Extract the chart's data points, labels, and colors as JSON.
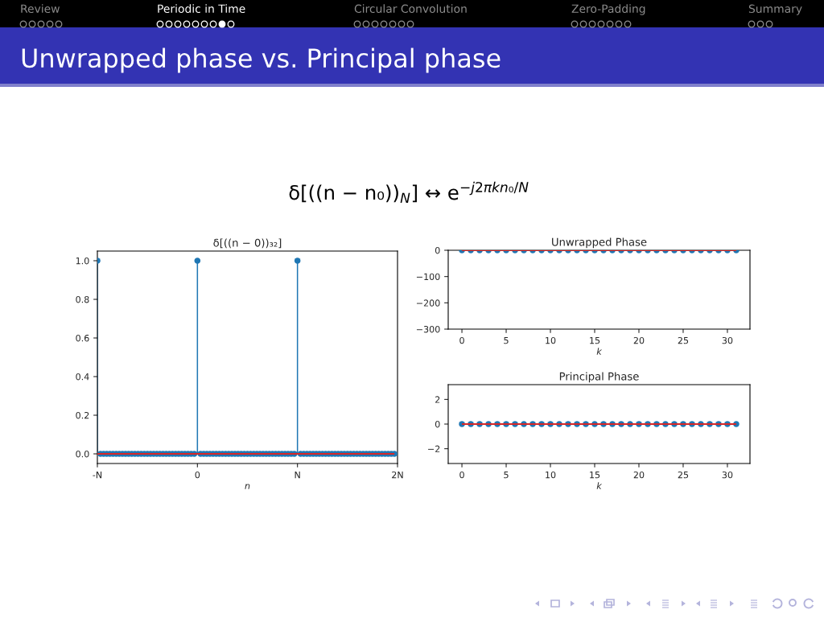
{
  "chart_data": [
    {
      "type": "other",
      "title": "Unwrapped phase vs. Principal phase",
      "annotations": [
        "Review",
        "Periodic in Time",
        "Circular Convolution",
        "Zero-Padding",
        "Summary",
        "δ[((n − n₀))$_{N}$] ↔ e$^{−j2πkn₀/N}$"
      ]
    },
    {
      "type": "lollipop",
      "title": "δ[((n − 0))₃₂]",
      "xlabel": "n",
      "categories": [
        "-N",
        null,
        null,
        null,
        null,
        null,
        null,
        null,
        null,
        null,
        null,
        null,
        null,
        null,
        null,
        null,
        null,
        null,
        null,
        null,
        null,
        null,
        null,
        null,
        null,
        null,
        null,
        null,
        null,
        null,
        null,
        null,
        "0",
        null,
        null,
        null,
        null,
        null,
        null,
        null,
        null,
        null,
        null,
        null,
        null,
        null,
        null,
        null,
        null,
        null,
        null,
        null,
        null,
        null,
        null,
        null,
        null,
        null,
        null,
        null,
        null,
        null,
        null,
        null,
        "N",
        null,
        null,
        null,
        null,
        null,
        null,
        null,
        null,
        null,
        null,
        null,
        null,
        null,
        null,
        null,
        null,
        null,
        null,
        null,
        null,
        null,
        null,
        null,
        null,
        null,
        null,
        null,
        null,
        null,
        null,
        null,
        "2N"
      ],
      "values": [
        1,
        0,
        0,
        0,
        0,
        0,
        0,
        0,
        0,
        0,
        0,
        0,
        0,
        0,
        0,
        0,
        0,
        0,
        0,
        0,
        0,
        0,
        0,
        0,
        0,
        0,
        0,
        0,
        0,
        0,
        0,
        0,
        1,
        0,
        0,
        0,
        0,
        0,
        0,
        0,
        0,
        0,
        0,
        0,
        0,
        0,
        0,
        0,
        0,
        0,
        0,
        0,
        0,
        0,
        0,
        0,
        0,
        0,
        0,
        0,
        0,
        0,
        0,
        0,
        1,
        0,
        0,
        0,
        0,
        0,
        0,
        0,
        0,
        0,
        0,
        0,
        0,
        0,
        0,
        0,
        0,
        0,
        0,
        0,
        0,
        0,
        0,
        0,
        0,
        0,
        0,
        0,
        0,
        0,
        0,
        0,
        null
      ],
      "color": "#1f77b4",
      "marker": "circle",
      "ylim": [
        -0.05,
        1.05
      ],
      "yticks": [
        {
          "value": 0,
          "label": "0.0"
        },
        {
          "value": 0.2,
          "label": "0.2"
        },
        {
          "value": 0.4,
          "label": "0.4"
        },
        {
          "value": 0.6,
          "label": "0.6"
        },
        {
          "value": 0.8,
          "label": "0.8"
        },
        {
          "value": 1,
          "label": "1.0"
        }
      ],
      "ref_lines": [
        {
          "axis": "y",
          "value": 0,
          "color": "#d62728"
        }
      ]
    },
    {
      "type": "lollipop",
      "title": "Unwrapped Phase",
      "xlabel": "k",
      "x": [
        0,
        1,
        2,
        3,
        4,
        5,
        6,
        7,
        8,
        9,
        10,
        11,
        12,
        13,
        14,
        15,
        16,
        17,
        18,
        19,
        20,
        21,
        22,
        23,
        24,
        25,
        26,
        27,
        28,
        29,
        30,
        31
      ],
      "values": [
        0,
        0,
        0,
        0,
        0,
        0,
        0,
        0,
        0,
        0,
        0,
        0,
        0,
        0,
        0,
        0,
        0,
        0,
        0,
        0,
        0,
        0,
        0,
        0,
        0,
        0,
        0,
        0,
        0,
        0,
        0,
        0
      ],
      "color": "#1f77b4",
      "marker": "circle",
      "xlim": [
        -1.55,
        32.55
      ],
      "xticks": [
        0,
        5,
        10,
        15,
        20,
        25,
        30
      ],
      "ylim": [
        -300,
        0
      ],
      "yticks": [
        {
          "value": -300,
          "label": "−300"
        },
        {
          "value": -200,
          "label": "−200"
        },
        {
          "value": -100,
          "label": "−100"
        },
        0
      ],
      "ref_lines": [
        {
          "axis": "y",
          "value": 0,
          "color": "#d62728"
        }
      ]
    },
    {
      "type": "lollipop",
      "title": "Principal Phase",
      "xlabel": "k",
      "x": [
        0,
        1,
        2,
        3,
        4,
        5,
        6,
        7,
        8,
        9,
        10,
        11,
        12,
        13,
        14,
        15,
        16,
        17,
        18,
        19,
        20,
        21,
        22,
        23,
        24,
        25,
        26,
        27,
        28,
        29,
        30,
        31
      ],
      "values": [
        0,
        0,
        0,
        0,
        0,
        0,
        0,
        0,
        0,
        0,
        0,
        0,
        0,
        0,
        0,
        0,
        0,
        0,
        0,
        0,
        0,
        0,
        0,
        0,
        0,
        0,
        0,
        0,
        0,
        0,
        0,
        0
      ],
      "color": "#1f77b4",
      "marker": "circle",
      "xlim": [
        -1.55,
        32.55
      ],
      "xticks": [
        0,
        5,
        10,
        15,
        20,
        25,
        30
      ],
      "ylim": [
        -3.2,
        3.2
      ],
      "yticks": [
        {
          "value": -2,
          "label": "−2"
        },
        0,
        2
      ],
      "ref_lines": [
        {
          "axis": "y",
          "value": 0,
          "color": "#d62728"
        }
      ]
    }
  ]
}
